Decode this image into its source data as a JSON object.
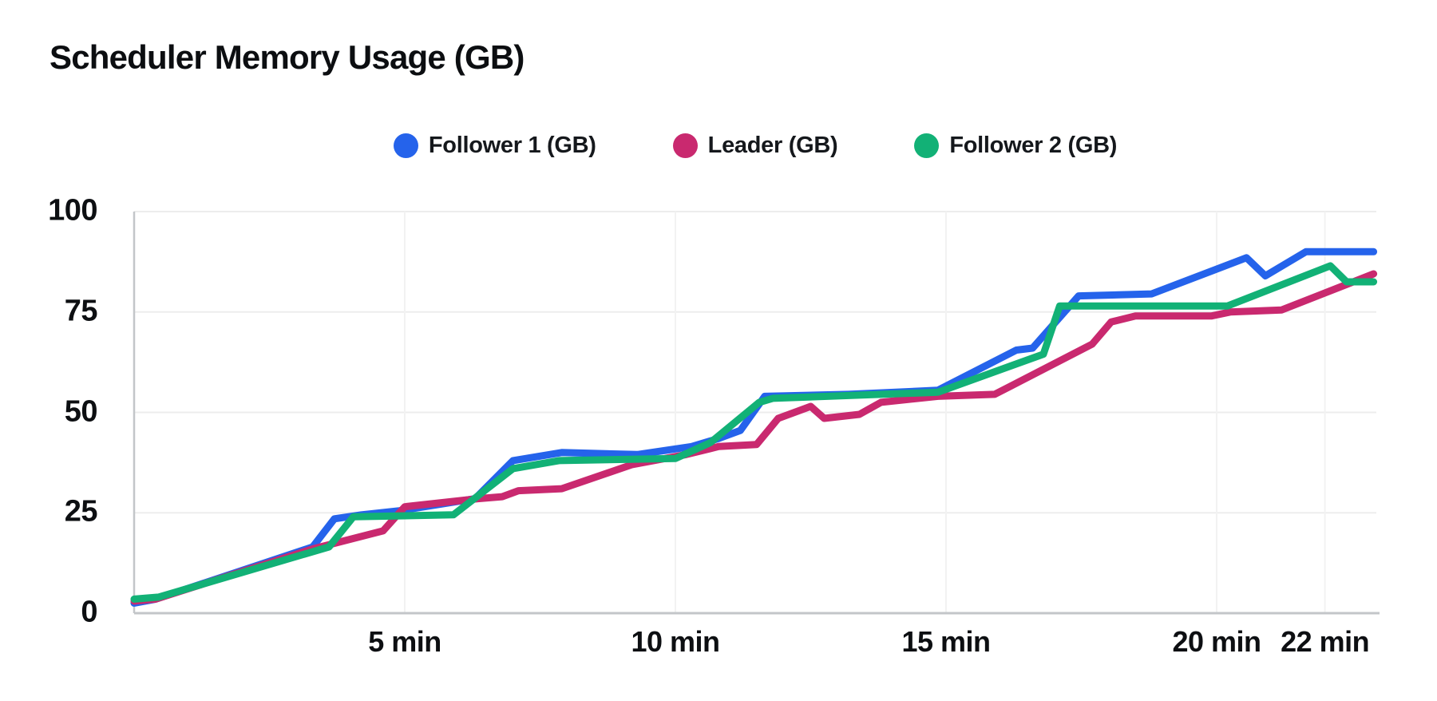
{
  "title": "Scheduler Memory Usage (GB)",
  "chart_data": {
    "type": "line",
    "title": "Scheduler Memory Usage (GB)",
    "xlabel": "",
    "ylabel": "",
    "x_unit": "min",
    "x_range": [
      0,
      22.9
    ],
    "ylim": [
      0,
      100
    ],
    "grid": true,
    "legend_position": "top-center",
    "background_color": "#ffffff",
    "axis_color": "#c3c6c9",
    "grid_color_h": "#ededed",
    "grid_color_v": "#f2f2f2",
    "text_color": "#0d0f12",
    "y_ticks": [
      {
        "label": "100",
        "v": 100
      },
      {
        "label": "75",
        "v": 75
      },
      {
        "label": "50",
        "v": 50
      },
      {
        "label": "25",
        "v": 25
      },
      {
        "label": "0",
        "v": 0
      }
    ],
    "x_ticks": [
      {
        "label": "5 min",
        "t": 5
      },
      {
        "label": "10 min",
        "t": 10
      },
      {
        "label": "15 min",
        "t": 15
      },
      {
        "label": "20 min",
        "t": 20
      },
      {
        "label": "22 min",
        "t": 22
      }
    ],
    "series": [
      {
        "name": "Follower 1 (GB)",
        "color": "#2563eb",
        "points": [
          [
            0,
            2.5
          ],
          [
            0.4,
            3.5
          ],
          [
            3.3,
            16.5
          ],
          [
            3.7,
            23.5
          ],
          [
            4.2,
            24.5
          ],
          [
            4.9,
            25.5
          ],
          [
            6.3,
            28.5
          ],
          [
            7.0,
            38
          ],
          [
            7.9,
            40
          ],
          [
            9.3,
            39.5
          ],
          [
            10.3,
            41.5
          ],
          [
            10.8,
            43.5
          ],
          [
            11.2,
            45.5
          ],
          [
            11.65,
            54
          ],
          [
            13.2,
            54.5
          ],
          [
            14.85,
            55.5
          ],
          [
            16.3,
            65.5
          ],
          [
            16.6,
            66
          ],
          [
            17.45,
            79
          ],
          [
            18.8,
            79.5
          ],
          [
            20.55,
            88.5
          ],
          [
            20.9,
            84
          ],
          [
            21.65,
            90
          ],
          [
            22.9,
            90
          ]
        ]
      },
      {
        "name": "Leader (GB)",
        "color": "#c9296f",
        "points": [
          [
            0,
            3
          ],
          [
            0.4,
            3.5
          ],
          [
            3.3,
            16
          ],
          [
            4.6,
            20.5
          ],
          [
            5.0,
            26.5
          ],
          [
            6.35,
            28.5
          ],
          [
            6.8,
            29
          ],
          [
            7.1,
            30.5
          ],
          [
            7.9,
            31
          ],
          [
            9.2,
            37
          ],
          [
            10.2,
            39.5
          ],
          [
            10.8,
            41.5
          ],
          [
            11.5,
            42
          ],
          [
            11.9,
            48.5
          ],
          [
            12.5,
            51.5
          ],
          [
            12.75,
            48.5
          ],
          [
            13.4,
            49.5
          ],
          [
            13.8,
            52.5
          ],
          [
            14.85,
            54
          ],
          [
            15.9,
            54.5
          ],
          [
            17.7,
            67
          ],
          [
            18.05,
            72.5
          ],
          [
            18.5,
            74
          ],
          [
            19.9,
            74
          ],
          [
            20.25,
            75
          ],
          [
            21.2,
            75.5
          ],
          [
            22.9,
            84.5
          ]
        ]
      },
      {
        "name": "Follower 2 (GB)",
        "color": "#12b176",
        "points": [
          [
            0,
            3.5
          ],
          [
            0.45,
            4
          ],
          [
            3.6,
            16.5
          ],
          [
            4.05,
            24
          ],
          [
            5.9,
            24.5
          ],
          [
            7.0,
            36
          ],
          [
            7.85,
            38
          ],
          [
            10.0,
            38.5
          ],
          [
            10.65,
            42.5
          ],
          [
            11.55,
            52.5
          ],
          [
            11.8,
            53.5
          ],
          [
            14.85,
            55
          ],
          [
            16.8,
            64.5
          ],
          [
            17.1,
            76.5
          ],
          [
            20.2,
            76.5
          ],
          [
            22.1,
            86.5
          ],
          [
            22.4,
            82.5
          ],
          [
            22.9,
            82.5
          ]
        ]
      }
    ]
  }
}
